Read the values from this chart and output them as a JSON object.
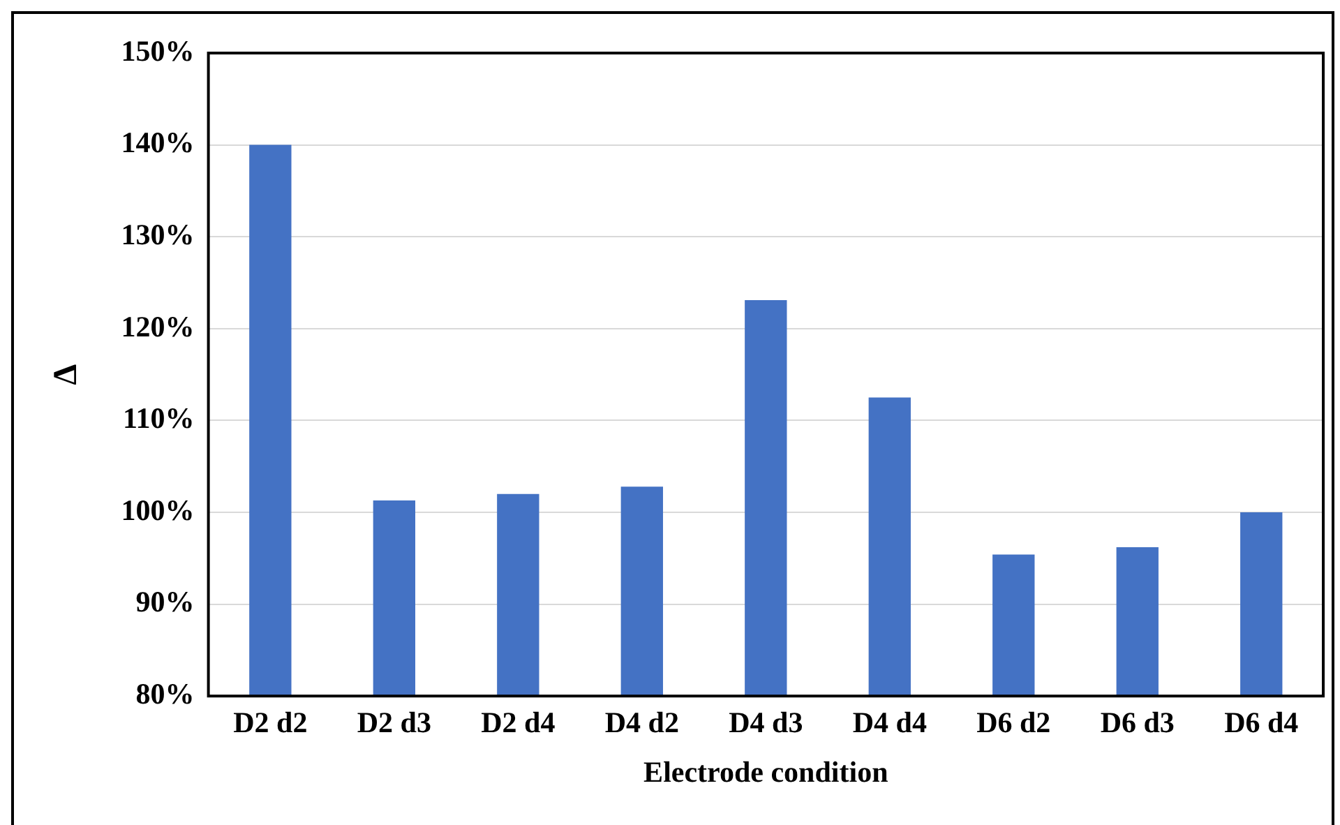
{
  "chart_data": {
    "type": "bar",
    "xlabel": "Electrode condition",
    "ylabel": "Δ",
    "categories": [
      "D2 d2",
      "D2 d3",
      "D2 d4",
      "D4 d2",
      "D4 d3",
      "D4 d4",
      "D6 d2",
      "D6 d3",
      "D6 d4"
    ],
    "values": [
      140,
      101.3,
      102,
      102.8,
      123.1,
      112.5,
      95.4,
      96.2,
      100
    ],
    "color": "#4472c4",
    "ylim": [
      80,
      150
    ],
    "yticks": [
      {
        "value": 80,
        "label": "80%"
      },
      {
        "value": 90,
        "label": "90%"
      },
      {
        "value": 100,
        "label": "100%"
      },
      {
        "value": 110,
        "label": "110%"
      },
      {
        "value": 120,
        "label": "120%"
      },
      {
        "value": 130,
        "label": "130%"
      },
      {
        "value": 140,
        "label": "140%"
      },
      {
        "value": 150,
        "label": "150%"
      }
    ],
    "grid": "y",
    "legend": false
  }
}
